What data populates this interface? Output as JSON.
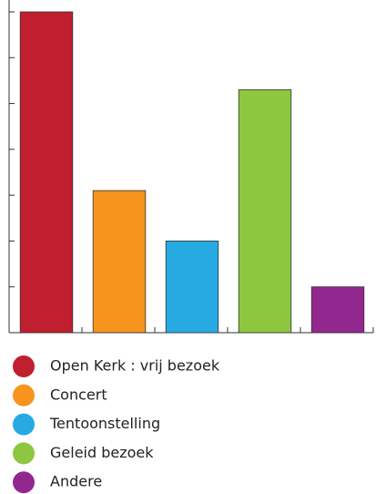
{
  "chart_data": {
    "type": "bar",
    "categories": [
      "Open Kerk : vrij bezoek",
      "Concert",
      "Tentoonstelling",
      "Geleid bezoek",
      "Andere"
    ],
    "values": [
      7,
      3.1,
      2,
      5.3,
      1
    ],
    "colors": [
      "#c01f2f",
      "#f7941d",
      "#27aae1",
      "#8dc63f",
      "#92278f"
    ],
    "ylim": [
      0,
      7
    ],
    "yticks": [
      0,
      1,
      2,
      3,
      4,
      5,
      6,
      7
    ],
    "grid": false,
    "legend": "bottom"
  }
}
